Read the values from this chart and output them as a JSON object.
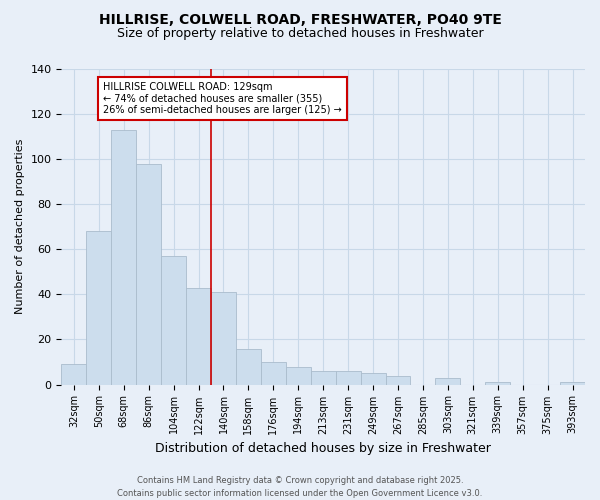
{
  "title": "HILLRISE, COLWELL ROAD, FRESHWATER, PO40 9TE",
  "subtitle": "Size of property relative to detached houses in Freshwater",
  "xlabel": "Distribution of detached houses by size in Freshwater",
  "ylabel": "Number of detached properties",
  "categories": [
    "32sqm",
    "50sqm",
    "68sqm",
    "86sqm",
    "104sqm",
    "122sqm",
    "140sqm",
    "158sqm",
    "176sqm",
    "194sqm",
    "213sqm",
    "231sqm",
    "249sqm",
    "267sqm",
    "285sqm",
    "303sqm",
    "321sqm",
    "339sqm",
    "357sqm",
    "375sqm",
    "393sqm"
  ],
  "values": [
    9,
    68,
    113,
    98,
    57,
    43,
    41,
    16,
    10,
    8,
    6,
    6,
    5,
    4,
    0,
    3,
    0,
    1,
    0,
    0,
    1
  ],
  "bar_color": "#ccdded",
  "bar_edge_color": "#aabccc",
  "vline_x_idx": 5.5,
  "vline_color": "#cc0000",
  "annotation_text": "HILLRISE COLWELL ROAD: 129sqm\n← 74% of detached houses are smaller (355)\n26% of semi-detached houses are larger (125) →",
  "annotation_box_color": "#ffffff",
  "annotation_box_edge": "#cc0000",
  "ylim": [
    0,
    140
  ],
  "yticks": [
    0,
    20,
    40,
    60,
    80,
    100,
    120,
    140
  ],
  "grid_color": "#c8d8e8",
  "background_color": "#e8eff8",
  "footer": "Contains HM Land Registry data © Crown copyright and database right 2025.\nContains public sector information licensed under the Open Government Licence v3.0.",
  "title_fontsize": 10,
  "subtitle_fontsize": 9,
  "tick_fontsize": 7,
  "axis_label_fontsize": 8,
  "footer_fontsize": 6,
  "annotation_fontsize": 7
}
